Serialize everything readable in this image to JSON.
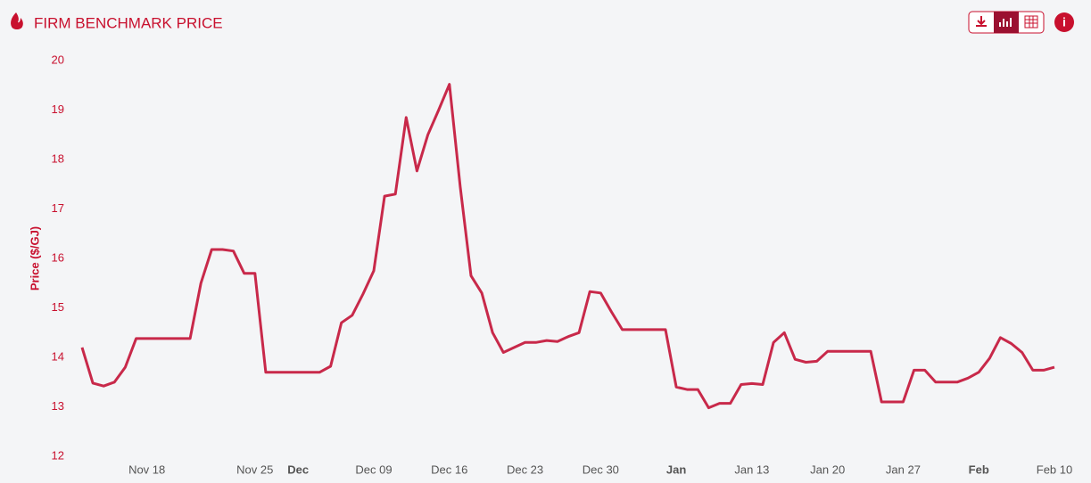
{
  "chart_data": {
    "type": "line",
    "title": "FIRM BENCHMARK PRICE",
    "y_label": "Price ($/GJ)",
    "categories": [
      null,
      null,
      null,
      null,
      null,
      null,
      "Nov 18",
      null,
      null,
      null,
      null,
      null,
      null,
      null,
      null,
      null,
      "Nov 25",
      null,
      null,
      null,
      "Dec",
      null,
      null,
      null,
      null,
      null,
      null,
      "Dec 09",
      null,
      null,
      null,
      null,
      null,
      null,
      "Dec 16",
      null,
      null,
      null,
      null,
      null,
      null,
      "Dec 23",
      null,
      null,
      null,
      null,
      null,
      null,
      "Dec 30",
      null,
      null,
      null,
      null,
      null,
      null,
      "Jan",
      null,
      null,
      null,
      null,
      null,
      null,
      "Jan 13",
      null,
      null,
      null,
      null,
      null,
      null,
      "Jan 20",
      null,
      null,
      null,
      null,
      null,
      null,
      "Jan 27",
      null,
      null,
      null,
      null,
      null,
      null,
      "Feb",
      null,
      null,
      null,
      null,
      null,
      null,
      "Feb 10"
    ],
    "series": [
      {
        "name": "Firm benchmark price",
        "color": "#c8294a",
        "values": [
          14.2,
          13.48,
          13.42,
          13.5,
          13.8,
          14.38,
          14.38,
          14.38,
          14.38,
          14.38,
          14.38,
          15.5,
          16.18,
          16.18,
          16.15,
          15.7,
          15.7,
          13.7,
          13.7,
          13.7,
          13.7,
          13.7,
          13.7,
          13.82,
          14.7,
          14.85,
          15.28,
          15.75,
          17.26,
          17.3,
          18.85,
          17.77,
          18.5,
          19.0,
          19.52,
          17.45,
          15.65,
          15.3,
          14.5,
          14.1,
          14.2,
          14.3,
          14.3,
          14.34,
          14.32,
          14.42,
          14.5,
          15.33,
          15.3,
          14.92,
          14.56,
          14.56,
          14.56,
          14.56,
          14.56,
          13.4,
          13.35,
          13.35,
          12.98,
          13.07,
          13.07,
          13.45,
          13.47,
          13.45,
          14.3,
          14.5,
          13.96,
          13.9,
          13.92,
          14.12,
          14.12,
          14.12,
          14.12,
          14.12,
          13.1,
          13.1,
          13.1,
          13.74,
          13.74,
          13.5,
          13.5,
          13.5,
          13.58,
          13.7,
          13.98,
          14.4,
          14.28,
          14.1,
          13.74,
          13.74,
          13.8
        ]
      }
    ],
    "ylim": [
      12,
      20
    ],
    "yticks": [
      12,
      13,
      14,
      15,
      16,
      17,
      18,
      19,
      20
    ],
    "grid": false
  }
}
